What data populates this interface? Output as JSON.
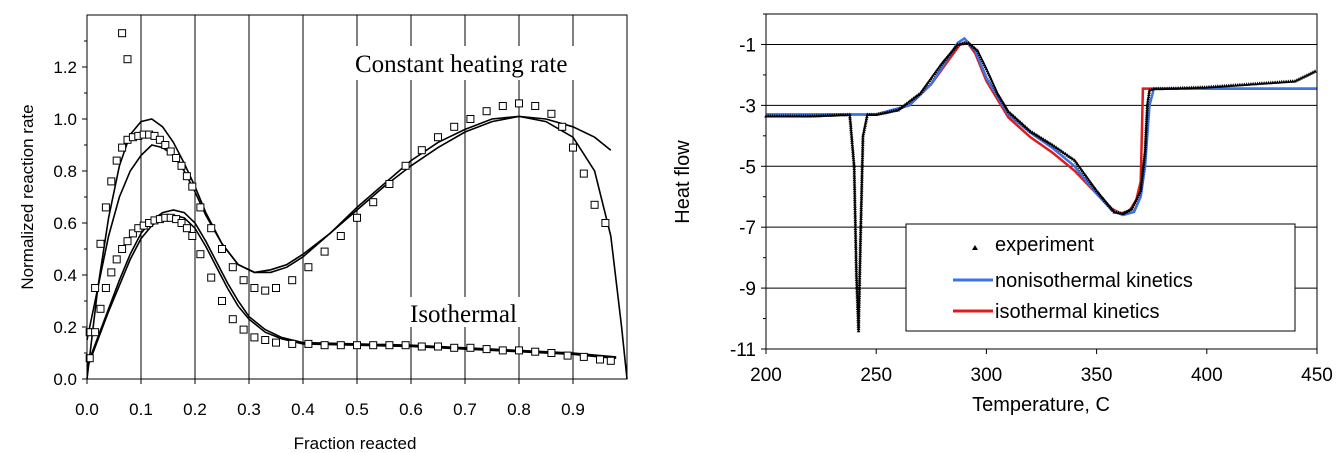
{
  "chart_data": [
    {
      "type": "scatter",
      "xlabel": "Fraction reacted",
      "ylabel": "Normalized reaction rate",
      "xlim": [
        0,
        1
      ],
      "ylim": [
        0,
        1.4
      ],
      "xticks": [
        "0.0",
        "0.1",
        "0.2",
        "0.3",
        "0.4",
        "0.5",
        "0.6",
        "0.7",
        "0.8",
        "0.9"
      ],
      "yticks": [
        "0.0",
        "0.2",
        "0.4",
        "0.6",
        "0.8",
        "1.0",
        "1.2"
      ],
      "grid": "vertical",
      "annotations": [
        "Constant heating rate",
        "Isothermal"
      ],
      "series": [
        {
          "marker": "open-square",
          "x": [
            0.005,
            0.015,
            0.025,
            0.035,
            0.045,
            0.055,
            0.065,
            0.075,
            0.085,
            0.095,
            0.105,
            0.115,
            0.125,
            0.135,
            0.145,
            0.155,
            0.165,
            0.175,
            0.185,
            0.195,
            0.21,
            0.23,
            0.25,
            0.27,
            0.29,
            0.31,
            0.33,
            0.35,
            0.38,
            0.41,
            0.44,
            0.47,
            0.5,
            0.53,
            0.56,
            0.59,
            0.62,
            0.65,
            0.68,
            0.71,
            0.74,
            0.77,
            0.8,
            0.83,
            0.86,
            0.88,
            0.9,
            0.92,
            0.94,
            0.96
          ],
          "y": [
            0.18,
            0.35,
            0.52,
            0.66,
            0.76,
            0.84,
            0.89,
            0.92,
            0.93,
            0.935,
            0.94,
            0.94,
            0.935,
            0.92,
            0.9,
            0.875,
            0.85,
            0.82,
            0.78,
            0.74,
            0.66,
            0.58,
            0.5,
            0.43,
            0.38,
            0.35,
            0.34,
            0.35,
            0.38,
            0.43,
            0.49,
            0.55,
            0.62,
            0.68,
            0.75,
            0.82,
            0.88,
            0.93,
            0.97,
            1.0,
            1.03,
            1.05,
            1.06,
            1.05,
            1.02,
            0.97,
            0.89,
            0.79,
            0.67,
            0.6
          ]
        },
        {
          "marker": "open-square",
          "x": [
            0.005,
            0.015,
            0.025,
            0.035,
            0.045,
            0.055,
            0.065,
            0.075,
            0.085,
            0.095,
            0.105,
            0.115,
            0.125,
            0.135,
            0.145,
            0.155,
            0.165,
            0.175,
            0.185,
            0.195,
            0.21,
            0.23,
            0.25,
            0.27,
            0.29,
            0.31,
            0.33,
            0.35,
            0.38,
            0.41,
            0.44,
            0.47,
            0.5,
            0.53,
            0.56,
            0.59,
            0.62,
            0.65,
            0.68,
            0.71,
            0.74,
            0.77,
            0.8,
            0.83,
            0.86,
            0.89,
            0.92,
            0.95,
            0.97
          ],
          "y": [
            0.08,
            0.18,
            0.27,
            0.35,
            0.41,
            0.46,
            0.5,
            0.53,
            0.56,
            0.58,
            0.59,
            0.6,
            0.61,
            0.615,
            0.62,
            0.62,
            0.615,
            0.6,
            0.58,
            0.55,
            0.48,
            0.39,
            0.3,
            0.23,
            0.19,
            0.16,
            0.15,
            0.14,
            0.135,
            0.135,
            0.13,
            0.13,
            0.13,
            0.13,
            0.13,
            0.13,
            0.125,
            0.125,
            0.12,
            0.12,
            0.115,
            0.11,
            0.11,
            0.105,
            0.1,
            0.09,
            0.085,
            0.075,
            0.07
          ]
        },
        {
          "marker": "open-square",
          "x": [
            0.065,
            0.075
          ],
          "y": [
            1.33,
            1.23
          ]
        }
      ],
      "curves": [
        {
          "x": [
            0.0,
            0.02,
            0.04,
            0.06,
            0.08,
            0.1,
            0.12,
            0.14,
            0.16,
            0.18,
            0.2,
            0.22,
            0.25,
            0.28,
            0.31,
            0.34,
            0.37,
            0.4,
            0.45,
            0.5,
            0.55,
            0.6,
            0.65,
            0.7,
            0.75,
            0.8,
            0.85,
            0.9,
            0.94,
            0.97,
            0.99,
            1.0
          ],
          "y": [
            0.0,
            0.35,
            0.62,
            0.82,
            0.94,
            0.99,
            1.0,
            0.97,
            0.91,
            0.83,
            0.74,
            0.64,
            0.52,
            0.44,
            0.41,
            0.41,
            0.43,
            0.47,
            0.56,
            0.66,
            0.75,
            0.84,
            0.91,
            0.96,
            1.0,
            1.01,
            0.99,
            0.93,
            0.8,
            0.55,
            0.2,
            0.0
          ]
        },
        {
          "x": [
            0.0,
            0.02,
            0.04,
            0.06,
            0.08,
            0.1,
            0.12,
            0.14,
            0.16,
            0.18,
            0.2,
            0.22,
            0.25,
            0.28,
            0.31,
            0.34,
            0.37,
            0.4,
            0.45,
            0.5,
            0.55,
            0.6,
            0.65,
            0.7,
            0.75,
            0.8,
            0.85,
            0.9,
            0.94,
            0.97
          ],
          "y": [
            0.15,
            0.35,
            0.55,
            0.7,
            0.8,
            0.86,
            0.9,
            0.89,
            0.86,
            0.8,
            0.72,
            0.63,
            0.52,
            0.44,
            0.41,
            0.42,
            0.44,
            0.48,
            0.56,
            0.65,
            0.74,
            0.82,
            0.89,
            0.95,
            0.99,
            1.01,
            1.0,
            0.97,
            0.93,
            0.88
          ]
        },
        {
          "x": [
            0.0,
            0.02,
            0.04,
            0.06,
            0.08,
            0.1,
            0.12,
            0.14,
            0.16,
            0.18,
            0.2,
            0.22,
            0.24,
            0.26,
            0.28,
            0.3,
            0.33,
            0.36,
            0.4,
            0.5,
            0.6,
            0.7,
            0.8,
            0.9,
            0.95,
            0.98
          ],
          "y": [
            0.05,
            0.16,
            0.27,
            0.38,
            0.48,
            0.56,
            0.61,
            0.64,
            0.65,
            0.64,
            0.6,
            0.53,
            0.45,
            0.37,
            0.3,
            0.24,
            0.19,
            0.16,
            0.14,
            0.135,
            0.13,
            0.12,
            0.11,
            0.1,
            0.09,
            0.085
          ]
        },
        {
          "x": [
            0.0,
            0.02,
            0.04,
            0.06,
            0.08,
            0.1,
            0.12,
            0.14,
            0.16,
            0.18,
            0.2,
            0.22,
            0.24,
            0.26,
            0.28,
            0.3,
            0.33,
            0.36,
            0.4,
            0.5,
            0.6,
            0.7,
            0.8,
            0.9,
            0.95,
            0.98
          ],
          "y": [
            0.04,
            0.15,
            0.26,
            0.36,
            0.46,
            0.54,
            0.59,
            0.62,
            0.63,
            0.62,
            0.58,
            0.51,
            0.43,
            0.35,
            0.28,
            0.23,
            0.18,
            0.155,
            0.135,
            0.13,
            0.125,
            0.115,
            0.105,
            0.095,
            0.085,
            0.08
          ]
        }
      ]
    },
    {
      "type": "line",
      "xlabel": "Temperature, C",
      "ylabel": "Heat flow",
      "xlim": [
        200,
        450
      ],
      "ylim": [
        -11,
        0
      ],
      "xticks": [
        "200",
        "250",
        "300",
        "350",
        "400",
        "450"
      ],
      "yticks": [
        "-1",
        "-3",
        "-5",
        "-7",
        "-9",
        "-11"
      ],
      "grid": "horizontal",
      "legend": "bottom-right",
      "series": [
        {
          "name": "experiment",
          "color": "#000000",
          "marker": "triangle",
          "x": [
            200,
            220,
            238,
            240,
            241,
            242,
            243,
            244,
            246,
            250,
            260,
            270,
            280,
            287,
            292,
            296,
            300,
            305,
            310,
            320,
            330,
            340,
            350,
            358,
            362,
            366,
            370,
            372,
            373,
            374,
            376,
            380,
            400,
            420,
            440,
            450
          ],
          "y": [
            -3.35,
            -3.35,
            -3.3,
            -5.0,
            -8.5,
            -10.4,
            -7.0,
            -4.0,
            -3.3,
            -3.3,
            -3.15,
            -2.6,
            -1.6,
            -1.0,
            -0.95,
            -1.2,
            -1.8,
            -2.6,
            -3.2,
            -3.85,
            -4.3,
            -4.8,
            -5.8,
            -6.5,
            -6.55,
            -6.4,
            -5.8,
            -4.5,
            -3.0,
            -2.5,
            -2.45,
            -2.45,
            -2.4,
            -2.3,
            -2.2,
            -1.85
          ]
        },
        {
          "name": "nonisothermal kinetics",
          "color": "#3a74e8",
          "x": [
            200,
            250,
            265,
            275,
            282,
            287,
            290,
            295,
            300,
            310,
            320,
            330,
            340,
            350,
            357,
            362,
            367,
            370,
            372,
            373,
            374,
            376,
            450
          ],
          "y": [
            -3.3,
            -3.3,
            -3.0,
            -2.3,
            -1.5,
            -0.95,
            -0.8,
            -1.2,
            -2.1,
            -3.3,
            -3.9,
            -4.4,
            -5.0,
            -5.9,
            -6.45,
            -6.6,
            -6.5,
            -6.0,
            -5.0,
            -4.0,
            -3.0,
            -2.45,
            -2.45
          ]
        },
        {
          "name": "isothermal kinetics",
          "color": "#e01b1b",
          "x": [
            200,
            250,
            265,
            275,
            283,
            288,
            291,
            295,
            300,
            310,
            320,
            330,
            340,
            350,
            357,
            361,
            365,
            368,
            370,
            370.5,
            371,
            450
          ],
          "y": [
            -3.3,
            -3.3,
            -3.0,
            -2.3,
            -1.5,
            -1.0,
            -0.9,
            -1.3,
            -2.2,
            -3.4,
            -4.05,
            -4.55,
            -5.15,
            -5.9,
            -6.4,
            -6.55,
            -6.45,
            -6.1,
            -5.5,
            -4.0,
            -2.45,
            -2.45
          ]
        }
      ]
    }
  ]
}
